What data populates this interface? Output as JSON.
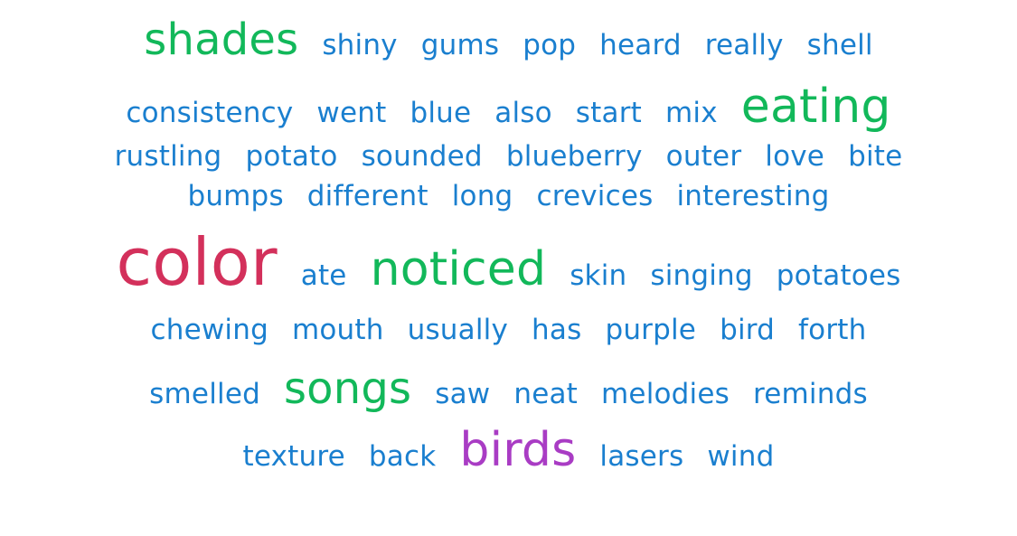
{
  "colors": {
    "common": "#1a7fcf",
    "frequent": "#12b85a",
    "top": "#d3305b",
    "second": "#a93cc4"
  },
  "rows": [
    {
      "words": [
        {
          "text": "shades",
          "size": "md",
          "color": "green"
        },
        {
          "text": "shiny",
          "size": "sm",
          "color": "blue"
        },
        {
          "text": "gums",
          "size": "sm",
          "color": "blue"
        },
        {
          "text": "pop",
          "size": "sm",
          "color": "blue"
        },
        {
          "text": "heard",
          "size": "sm",
          "color": "blue"
        },
        {
          "text": "really",
          "size": "sm",
          "color": "blue"
        },
        {
          "text": "shell",
          "size": "sm",
          "color": "blue"
        }
      ]
    },
    {
      "words": [
        {
          "text": "consistency",
          "size": "sm",
          "color": "blue"
        },
        {
          "text": "went",
          "size": "sm",
          "color": "blue"
        },
        {
          "text": "blue",
          "size": "sm",
          "color": "blue"
        },
        {
          "text": "also",
          "size": "sm",
          "color": "blue"
        },
        {
          "text": "start",
          "size": "sm",
          "color": "blue"
        },
        {
          "text": "mix",
          "size": "sm",
          "color": "blue"
        },
        {
          "text": "eating",
          "size": "lg",
          "color": "green"
        }
      ]
    },
    {
      "words": [
        {
          "text": "rustling",
          "size": "sm",
          "color": "blue"
        },
        {
          "text": "potato",
          "size": "sm",
          "color": "blue"
        },
        {
          "text": "sounded",
          "size": "sm",
          "color": "blue"
        },
        {
          "text": "blueberry",
          "size": "sm",
          "color": "blue"
        },
        {
          "text": "outer",
          "size": "sm",
          "color": "blue"
        },
        {
          "text": "love",
          "size": "sm",
          "color": "blue"
        },
        {
          "text": "bite",
          "size": "sm",
          "color": "blue"
        }
      ]
    },
    {
      "words": [
        {
          "text": "bumps",
          "size": "sm",
          "color": "blue"
        },
        {
          "text": "different",
          "size": "sm",
          "color": "blue"
        },
        {
          "text": "long",
          "size": "sm",
          "color": "blue"
        },
        {
          "text": "crevices",
          "size": "sm",
          "color": "blue"
        },
        {
          "text": "interesting",
          "size": "sm",
          "color": "blue"
        }
      ]
    },
    {
      "words": [
        {
          "text": "color",
          "size": "xl",
          "color": "red"
        },
        {
          "text": "ate",
          "size": "sm",
          "color": "blue"
        },
        {
          "text": "noticed",
          "size": "lg",
          "color": "green"
        },
        {
          "text": "skin",
          "size": "sm",
          "color": "blue"
        },
        {
          "text": "singing",
          "size": "sm",
          "color": "blue"
        },
        {
          "text": "potatoes",
          "size": "sm",
          "color": "blue"
        }
      ]
    },
    {
      "words": [
        {
          "text": "chewing",
          "size": "sm",
          "color": "blue"
        },
        {
          "text": "mouth",
          "size": "sm",
          "color": "blue"
        },
        {
          "text": "usually",
          "size": "sm",
          "color": "blue"
        },
        {
          "text": "has",
          "size": "sm",
          "color": "blue"
        },
        {
          "text": "purple",
          "size": "sm",
          "color": "blue"
        },
        {
          "text": "bird",
          "size": "sm",
          "color": "blue"
        },
        {
          "text": "forth",
          "size": "sm",
          "color": "blue"
        }
      ]
    },
    {
      "words": [
        {
          "text": "smelled",
          "size": "sm",
          "color": "blue"
        },
        {
          "text": "songs",
          "size": "md",
          "color": "green"
        },
        {
          "text": "saw",
          "size": "sm",
          "color": "blue"
        },
        {
          "text": "neat",
          "size": "sm",
          "color": "blue"
        },
        {
          "text": "melodies",
          "size": "sm",
          "color": "blue"
        },
        {
          "text": "reminds",
          "size": "sm",
          "color": "blue"
        }
      ]
    },
    {
      "words": [
        {
          "text": "texture",
          "size": "sm",
          "color": "blue"
        },
        {
          "text": "back",
          "size": "sm",
          "color": "blue"
        },
        {
          "text": "birds",
          "size": "lg",
          "color": "purple"
        },
        {
          "text": "lasers",
          "size": "sm",
          "color": "blue"
        },
        {
          "text": "wind",
          "size": "sm",
          "color": "blue"
        }
      ]
    }
  ]
}
